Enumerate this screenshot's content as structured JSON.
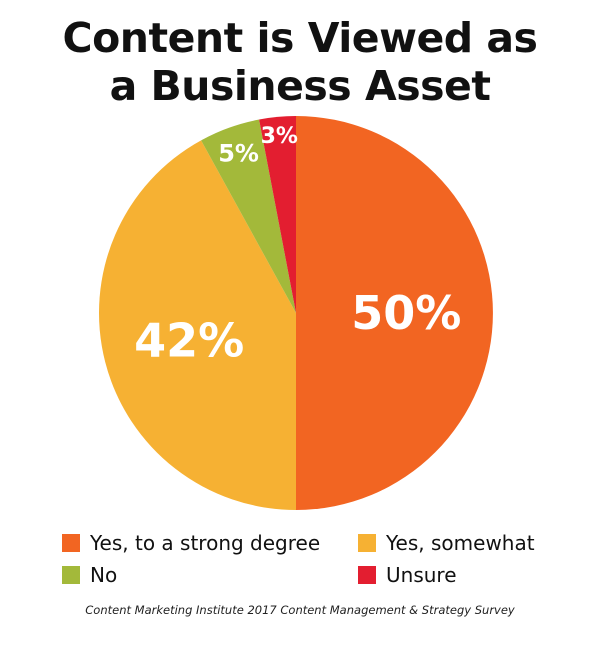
{
  "title": {
    "line1": "Content is Viewed as",
    "line2": "a Business Asset"
  },
  "chart_data": {
    "type": "pie",
    "title": "Content is Viewed as a Business Asset",
    "start_angle_deg": 0,
    "direction": "clockwise",
    "slices": [
      {
        "label": "Yes, to a strong degree",
        "value": 50,
        "display": "50%",
        "color": "#f26522"
      },
      {
        "label": "Yes, somewhat",
        "value": 42,
        "display": "42%",
        "color": "#f6b133"
      },
      {
        "label": "No",
        "value": 5,
        "display": "5%",
        "color": "#a3b93a"
      },
      {
        "label": "Unsure",
        "value": 3,
        "display": "3%",
        "color": "#e31e30"
      }
    ],
    "legend_placement": "bottom"
  },
  "legend": {
    "items": [
      {
        "label": "Yes, to a strong degree",
        "color": "#f26522"
      },
      {
        "label": "Yes, somewhat",
        "color": "#f6b133"
      },
      {
        "label": "No",
        "color": "#a3b93a"
      },
      {
        "label": "Unsure",
        "color": "#e31e30"
      }
    ]
  },
  "source": "Content Marketing Institute 2017 Content Management & Strategy Survey"
}
